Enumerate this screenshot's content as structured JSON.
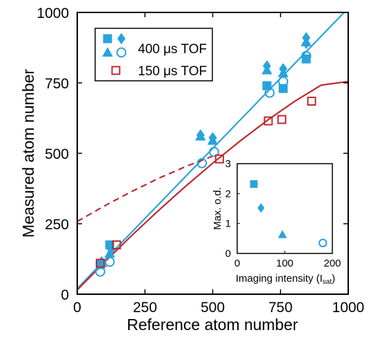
{
  "chart_data": [
    {
      "type": "scatter",
      "xlabel": "Reference atom number",
      "ylabel": "Measured atom number",
      "xlim": [
        0,
        1000
      ],
      "ylim": [
        0,
        1000
      ],
      "xticks": [
        "0",
        "250",
        "500",
        "750",
        "1000"
      ],
      "yticks": [
        "0",
        "250",
        "500",
        "750",
        "1000"
      ],
      "colors": {
        "blue": "#29a3dc",
        "red": "#c0282d"
      },
      "legend": {
        "placement": "top-left",
        "entries": [
          {
            "label": "400 μs TOF",
            "color": "#29a3dc",
            "markers": [
              "square",
              "diamond",
              "triangle",
              "circle"
            ]
          },
          {
            "label": "150 μs TOF",
            "color": "#c0282d",
            "markers": [
              "open-square"
            ]
          }
        ]
      },
      "series": [
        {
          "marker": "square",
          "color": "#29a3dc",
          "filled": true,
          "points": [
            [
              85,
              105
            ],
            [
              120,
              175
            ],
            [
              700,
              740
            ],
            [
              760,
              730
            ],
            [
              845,
              835
            ]
          ]
        },
        {
          "marker": "diamond",
          "color": "#29a3dc",
          "filled": true,
          "points": [
            [
              90,
              115
            ],
            [
              125,
              160
            ],
            [
              455,
              565
            ],
            [
              500,
              555
            ],
            [
              700,
              810
            ],
            [
              760,
              800
            ],
            [
              845,
              910
            ],
            [
              845,
              890
            ]
          ]
        },
        {
          "marker": "triangle",
          "color": "#29a3dc",
          "filled": true,
          "points": [
            [
              90,
              110
            ],
            [
              120,
              145
            ],
            [
              455,
              560
            ],
            [
              500,
              545
            ],
            [
              700,
              795
            ],
            [
              760,
              785
            ],
            [
              845,
              895
            ]
          ]
        },
        {
          "marker": "circle",
          "color": "#29a3dc",
          "filled": false,
          "points": [
            [
              85,
              80
            ],
            [
              120,
              115
            ],
            [
              460,
              465
            ],
            [
              505,
              505
            ],
            [
              710,
              715
            ],
            [
              760,
              755
            ],
            [
              845,
              845
            ]
          ]
        },
        {
          "marker": "open-square",
          "color": "#c0282d",
          "filled": false,
          "points": [
            [
              85,
              110
            ],
            [
              145,
              175
            ],
            [
              525,
              480
            ],
            [
              705,
              615
            ],
            [
              755,
              620
            ],
            [
              865,
              685
            ]
          ]
        }
      ],
      "lines": [
        {
          "kind": "linear-fit",
          "color": "#29a3dc",
          "x": [
            0,
            1000
          ],
          "y": [
            20,
            1015
          ]
        },
        {
          "kind": "fit",
          "color": "#c0282d",
          "style": "solid",
          "x": [
            0,
            100,
            200,
            300,
            400,
            500,
            600,
            700,
            800,
            900,
            1000
          ],
          "y": [
            15,
            113,
            207,
            297,
            383,
            465,
            543,
            616,
            683,
            742,
            755
          ]
        },
        {
          "kind": "extrapolation",
          "color": "#c0282d",
          "style": "dashed",
          "x": [
            0,
            100,
            200,
            300,
            400,
            500
          ],
          "y": [
            258,
            313,
            364,
            411,
            453,
            490
          ]
        }
      ]
    },
    {
      "type": "scatter",
      "xlabel": "Imaging intensity (I",
      "xlabel_sub": "sat",
      "xlabel_close": ")",
      "ylabel": "Max. o.d.",
      "xlim": [
        0,
        200
      ],
      "ylim": [
        0,
        3
      ],
      "xticks": [
        "0",
        "100",
        "200"
      ],
      "yticks": [
        "0",
        "1",
        "2",
        "3"
      ],
      "points": [
        {
          "marker": "square",
          "filled": true,
          "x": 35,
          "y": 2.32
        },
        {
          "marker": "diamond",
          "filled": true,
          "x": 50,
          "y": 1.52
        },
        {
          "marker": "triangle",
          "filled": true,
          "x": 95,
          "y": 0.63
        },
        {
          "marker": "circle",
          "filled": false,
          "x": 180,
          "y": 0.35
        }
      ]
    }
  ]
}
